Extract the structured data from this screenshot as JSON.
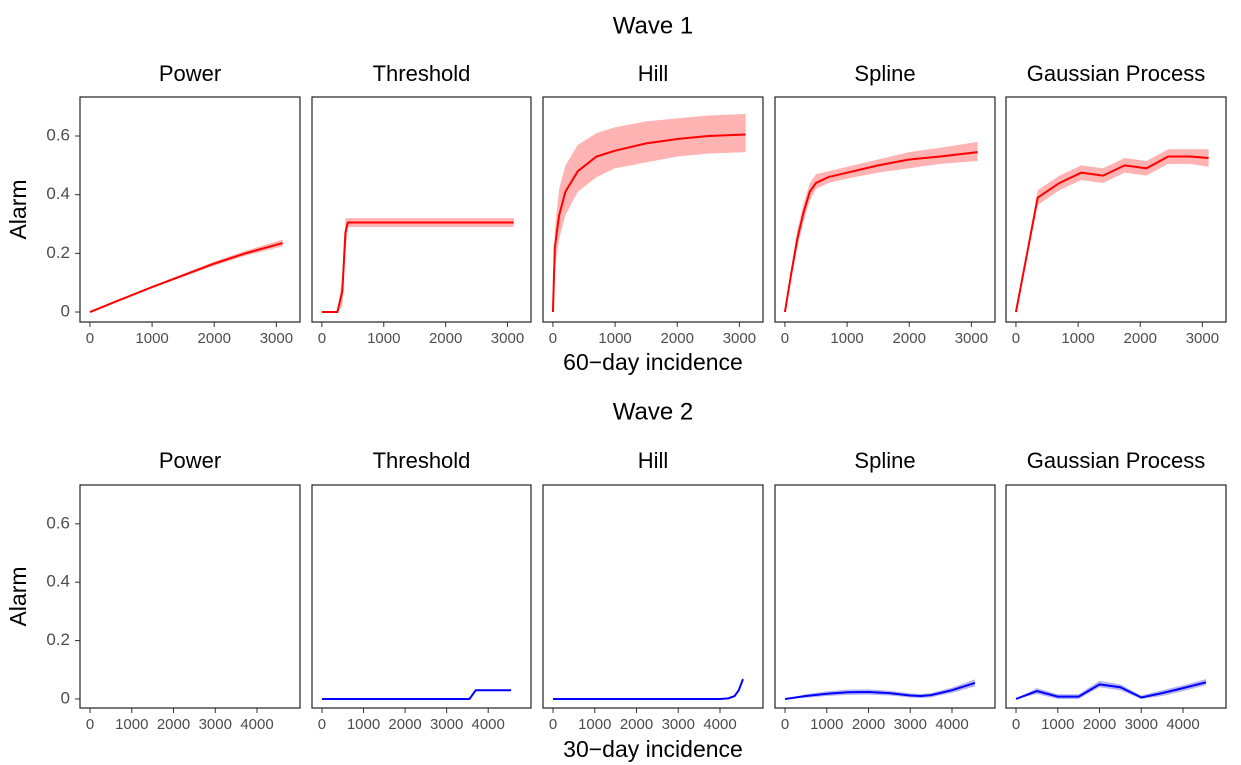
{
  "chart_data": [
    {
      "type": "line",
      "title": "Wave 1",
      "xlabel": "60−day incidence",
      "ylabel": "Alarm",
      "color": "#ff0000",
      "band_color": "#ffb3b3",
      "xlim": [
        -160,
        3380
      ],
      "xticks": [
        0,
        1000,
        2000,
        3000
      ],
      "ylim": [
        -0.034,
        0.733
      ],
      "yticks": [
        0.0,
        0.2,
        0.4,
        0.6
      ],
      "panels": [
        {
          "title": "Power",
          "x": [
            0,
            500,
            1000,
            1500,
            2000,
            2500,
            3100
          ],
          "values": [
            0,
            0.043,
            0.085,
            0.125,
            0.165,
            0.2,
            0.235
          ],
          "lower": [
            0,
            0.041,
            0.082,
            0.12,
            0.158,
            0.192,
            0.224
          ],
          "upper": [
            0,
            0.045,
            0.088,
            0.13,
            0.172,
            0.209,
            0.247
          ]
        },
        {
          "title": "Threshold",
          "x": [
            0,
            250,
            330,
            380,
            420,
            3100
          ],
          "values": [
            0,
            0,
            0.07,
            0.27,
            0.305,
            0.305
          ],
          "lower": [
            0,
            0,
            0.02,
            0.2,
            0.29,
            0.29
          ],
          "upper": [
            0,
            0,
            0.12,
            0.32,
            0.32,
            0.32
          ]
        },
        {
          "title": "Hill",
          "x": [
            0,
            30,
            100,
            200,
            400,
            700,
            1000,
            1500,
            2000,
            2500,
            3100
          ],
          "values": [
            0,
            0.22,
            0.33,
            0.41,
            0.48,
            0.53,
            0.55,
            0.575,
            0.59,
            0.6,
            0.605
          ],
          "lower": [
            0,
            0.15,
            0.25,
            0.33,
            0.41,
            0.46,
            0.49,
            0.51,
            0.53,
            0.54,
            0.545
          ],
          "upper": [
            0,
            0.28,
            0.42,
            0.5,
            0.57,
            0.61,
            0.63,
            0.65,
            0.66,
            0.67,
            0.675
          ]
        },
        {
          "title": "Spline",
          "x": [
            0,
            100,
            200,
            300,
            400,
            500,
            700,
            1000,
            1500,
            2000,
            2500,
            3100
          ],
          "values": [
            0,
            0.13,
            0.25,
            0.34,
            0.41,
            0.44,
            0.46,
            0.475,
            0.5,
            0.52,
            0.53,
            0.545
          ],
          "lower": [
            0,
            0.11,
            0.22,
            0.31,
            0.38,
            0.42,
            0.44,
            0.455,
            0.475,
            0.49,
            0.505,
            0.515
          ],
          "upper": [
            0,
            0.15,
            0.28,
            0.37,
            0.44,
            0.47,
            0.48,
            0.495,
            0.52,
            0.545,
            0.56,
            0.58
          ]
        },
        {
          "title": "Gaussian Process",
          "x": [
            0,
            350,
            700,
            1050,
            1400,
            1750,
            2100,
            2450,
            2800,
            3100
          ],
          "values": [
            0,
            0.39,
            0.44,
            0.475,
            0.465,
            0.5,
            0.49,
            0.53,
            0.53,
            0.525
          ],
          "lower": [
            0,
            0.365,
            0.415,
            0.45,
            0.44,
            0.475,
            0.465,
            0.505,
            0.505,
            0.495
          ],
          "upper": [
            0,
            0.415,
            0.465,
            0.5,
            0.49,
            0.525,
            0.515,
            0.555,
            0.555,
            0.555
          ]
        }
      ]
    },
    {
      "type": "line",
      "title": "Wave 2",
      "xlabel": "30−day incidence",
      "ylabel": "Alarm",
      "color": "#0000ff",
      "band_color": "#b3b3f0",
      "xlim": [
        -240,
        5030
      ],
      "xticks": [
        0,
        1000,
        2000,
        3000,
        4000
      ],
      "ylim": [
        -0.031,
        0.733
      ],
      "yticks": [
        0.0,
        0.2,
        0.4,
        0.6
      ],
      "panels": [
        {
          "title": "Power"
        },
        {
          "title": "Threshold",
          "x": [
            0,
            3550,
            3700,
            4550
          ],
          "values": [
            0,
            0,
            0.03,
            0.03
          ],
          "lower": [
            0,
            0,
            0.027,
            0.027
          ],
          "upper": [
            0,
            0.002,
            0.033,
            0.033
          ]
        },
        {
          "title": "Hill",
          "x": [
            0,
            4000,
            4200,
            4350,
            4450,
            4550
          ],
          "values": [
            0,
            0,
            0.002,
            0.01,
            0.03,
            0.068
          ],
          "lower": [
            0,
            0,
            0.001,
            0.008,
            0.027,
            0.063
          ],
          "upper": [
            0,
            0.001,
            0.003,
            0.012,
            0.033,
            0.073
          ]
        },
        {
          "title": "Spline",
          "x": [
            0,
            500,
            1000,
            1500,
            2000,
            2500,
            3000,
            3250,
            3500,
            4000,
            4550
          ],
          "values": [
            0,
            0.01,
            0.018,
            0.023,
            0.024,
            0.02,
            0.012,
            0.01,
            0.013,
            0.03,
            0.055
          ],
          "lower": [
            0,
            0.004,
            0.01,
            0.014,
            0.015,
            0.012,
            0.005,
            0.003,
            0.006,
            0.021,
            0.043
          ],
          "upper": [
            0,
            0.016,
            0.026,
            0.032,
            0.033,
            0.028,
            0.019,
            0.017,
            0.02,
            0.039,
            0.067
          ]
        },
        {
          "title": "Gaussian Process",
          "x": [
            0,
            500,
            1000,
            1500,
            2000,
            2500,
            3000,
            3500,
            4000,
            4550
          ],
          "values": [
            0,
            0.027,
            0.008,
            0.008,
            0.05,
            0.04,
            0.005,
            0.02,
            0.037,
            0.057
          ],
          "lower": [
            0,
            0.017,
            0.0,
            0.0,
            0.04,
            0.03,
            0.0,
            0.01,
            0.027,
            0.047
          ],
          "upper": [
            0,
            0.037,
            0.016,
            0.016,
            0.062,
            0.05,
            0.012,
            0.03,
            0.047,
            0.068
          ]
        }
      ]
    }
  ]
}
